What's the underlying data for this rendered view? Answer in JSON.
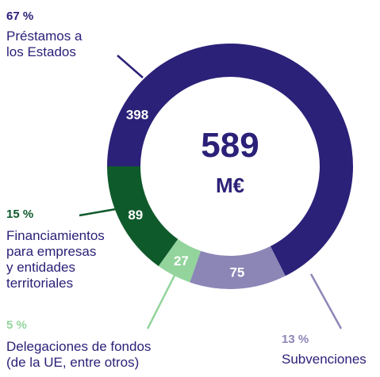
{
  "chart_data": {
    "type": "donut",
    "total": 589,
    "unit": "M€",
    "categories": [
      "Préstamos a\nlos Estados",
      "Subvenciones",
      "Delegaciones de fondos\n(de la UE, entre otros)",
      "Financiamientos\npara empresas\ny entidades\nterritoriales"
    ],
    "values": [
      398,
      75,
      27,
      89
    ],
    "shares": [
      {
        "value": 67,
        "label": "67 %"
      },
      {
        "value": 13,
        "label": "13 %"
      },
      {
        "value": 5,
        "label": "5 %"
      },
      {
        "value": 15,
        "label": "15 %"
      }
    ],
    "colors": [
      "#2b2178",
      "#8c86b7",
      "#93d49c",
      "#0f5a2b"
    ]
  }
}
